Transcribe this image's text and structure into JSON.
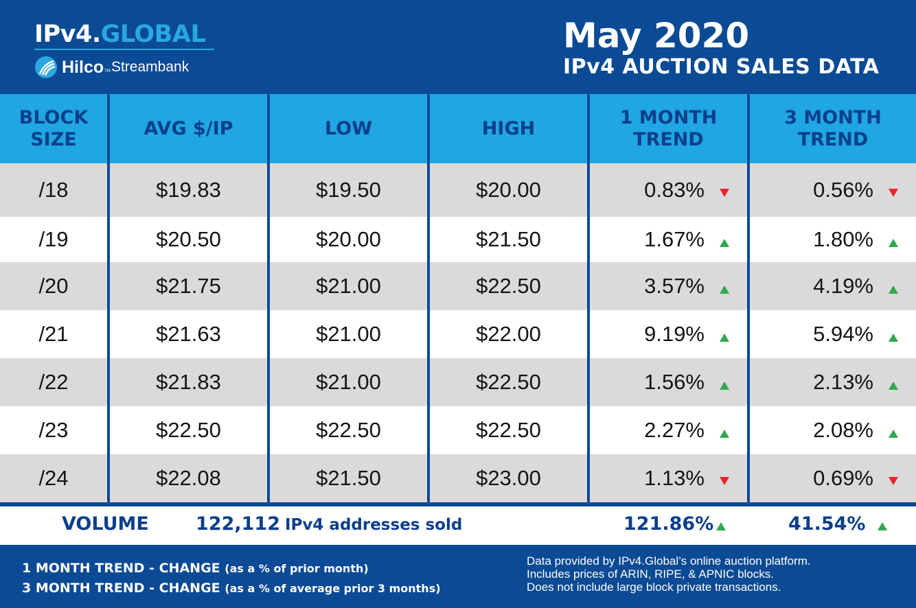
{
  "header": {
    "logo_ipv4": "IPv4.",
    "logo_global": "GLOBAL",
    "logo_hilco": "Hilco",
    "logo_tm": "TM",
    "logo_streambank": "Streambank",
    "title": "May 2020",
    "subtitle": "IPv4 AUCTION SALES DATA"
  },
  "table": {
    "columns": [
      "BLOCK\nSIZE",
      "AVG $/IP",
      "LOW",
      "HIGH",
      "1 MONTH\nTREND",
      "3 MONTH\nTREND"
    ],
    "rows": [
      {
        "block": "/18",
        "avg": "$19.83",
        "low": "$19.50",
        "high": "$20.00",
        "t1": "0.83%",
        "t1dir": "down",
        "t3": "0.56%",
        "t3dir": "down"
      },
      {
        "block": "/19",
        "avg": "$20.50",
        "low": "$20.00",
        "high": "$21.50",
        "t1": "1.67%",
        "t1dir": "up",
        "t3": "1.80%",
        "t3dir": "up"
      },
      {
        "block": "/20",
        "avg": "$21.75",
        "low": "$21.00",
        "high": "$22.50",
        "t1": "3.57%",
        "t1dir": "up",
        "t3": "4.19%",
        "t3dir": "up"
      },
      {
        "block": "/21",
        "avg": "$21.63",
        "low": "$21.00",
        "high": "$22.00",
        "t1": "9.19%",
        "t1dir": "up",
        "t3": "5.94%",
        "t3dir": "up"
      },
      {
        "block": "/22",
        "avg": "$21.83",
        "low": "$21.00",
        "high": "$22.50",
        "t1": "1.56%",
        "t1dir": "up",
        "t3": "2.13%",
        "t3dir": "up"
      },
      {
        "block": "/23",
        "avg": "$22.50",
        "low": "$22.50",
        "high": "$22.50",
        "t1": "2.27%",
        "t1dir": "up",
        "t3": "2.08%",
        "t3dir": "up"
      },
      {
        "block": "/24",
        "avg": "$22.08",
        "low": "$21.50",
        "high": "$23.00",
        "t1": "1.13%",
        "t1dir": "down",
        "t3": "0.69%",
        "t3dir": "down"
      }
    ]
  },
  "volume": {
    "label": "VOLUME",
    "count": "122,112",
    "text": "IPv4 addresses sold",
    "trend1": "121.86%",
    "trend1dir": "up",
    "trend3": "41.54%",
    "trend3dir": "up"
  },
  "footer": {
    "legend1_bold": "1 MONTH TREND - CHANGE",
    "legend1_small": "(as a % of prior month)",
    "legend3_bold": "3 MONTH TREND - CHANGE",
    "legend3_small": "(as a % of average prior 3 months)",
    "note1": "Data provided by IPv4.Global’s online auction platform.",
    "note2": "Includes prices of ARIN, RIPE, & APNIC blocks.",
    "note3": "Does not include large block private transactions."
  },
  "colors": {
    "navy": "#0b4a94",
    "header_blue": "#1fa6e3",
    "row_gray": "#dbd9db",
    "up_green": "#2fa84f",
    "down_red": "#e2282b"
  }
}
